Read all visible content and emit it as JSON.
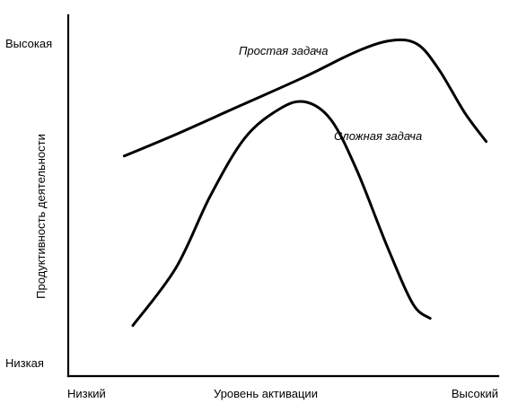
{
  "chart_data": {
    "type": "line",
    "xlabel": "Уровень активации",
    "ylabel": "Продуктивность деятельности",
    "x_tick_labels": [
      "Низкий",
      "Высокий"
    ],
    "y_tick_labels": [
      "Высокая",
      "Низкая"
    ],
    "xlim": [
      0,
      10
    ],
    "ylim": [
      0,
      10
    ],
    "grid": false,
    "legend": "none",
    "line_color": "#000000",
    "series": [
      {
        "name": "Простая задача",
        "x": [
          1.3,
          2.5,
          4.0,
          5.5,
          6.7,
          7.5,
          8.1,
          8.6,
          9.2,
          9.7
        ],
        "y": [
          6.1,
          6.7,
          7.5,
          8.3,
          9.0,
          9.3,
          9.2,
          8.5,
          7.3,
          6.5
        ]
      },
      {
        "name": "Сложная задача",
        "x": [
          1.5,
          2.5,
          3.3,
          4.1,
          4.9,
          5.5,
          6.1,
          6.7,
          7.4,
          8.0,
          8.4
        ],
        "y": [
          1.4,
          3.0,
          5.0,
          6.6,
          7.4,
          7.6,
          7.1,
          5.7,
          3.6,
          2.0,
          1.6
        ]
      }
    ]
  }
}
